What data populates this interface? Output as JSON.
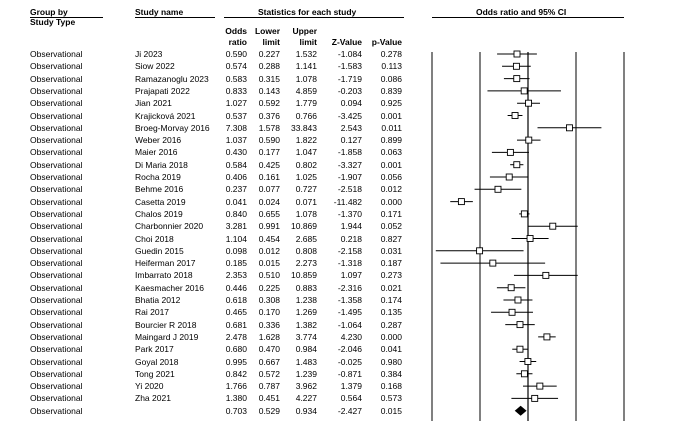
{
  "headers": {
    "group_by": "Group by",
    "study_type": "Study Type",
    "study_name": "Study name",
    "stats": "Statistics for each study",
    "plot_title": "Odds ratio and 95% CI",
    "odds_a": "Odds",
    "odds_b": "ratio",
    "lower_a": "Lower",
    "lower_b": "limit",
    "upper_a": "Upper",
    "upper_b": "limit",
    "zvalue": "Z-Value",
    "pvalue": "p-Value"
  },
  "rows": [
    {
      "type": "Observational",
      "study": "Ji 2023",
      "or": "0.590",
      "lower": "0.227",
      "upper": "1.532",
      "z": "-1.084",
      "p": "0.278"
    },
    {
      "type": "Observational",
      "study": "Siow 2022",
      "or": "0.574",
      "lower": "0.288",
      "upper": "1.141",
      "z": "-1.583",
      "p": "0.113"
    },
    {
      "type": "Observational",
      "study": "Ramazanoglu 2023",
      "or": "0.583",
      "lower": "0.315",
      "upper": "1.078",
      "z": "-1.719",
      "p": "0.086"
    },
    {
      "type": "Observational",
      "study": "Prajapati 2022",
      "or": "0.833",
      "lower": "0.143",
      "upper": "4.859",
      "z": "-0.203",
      "p": "0.839"
    },
    {
      "type": "Observational",
      "study": "Jian 2021",
      "or": "1.027",
      "lower": "0.592",
      "upper": "1.779",
      "z": "0.094",
      "p": "0.925"
    },
    {
      "type": "Observational",
      "study": "Krajicková 2021",
      "or": "0.537",
      "lower": "0.376",
      "upper": "0.766",
      "z": "-3.425",
      "p": "0.001"
    },
    {
      "type": "Observational",
      "study": "Broeg-Morvay 2016",
      "or": "7.308",
      "lower": "1.578",
      "upper": "33.843",
      "z": "2.543",
      "p": "0.011"
    },
    {
      "type": "Observational",
      "study": "Weber 2016",
      "or": "1.037",
      "lower": "0.590",
      "upper": "1.822",
      "z": "0.127",
      "p": "0.899"
    },
    {
      "type": "Observational",
      "study": "Maier 2016",
      "or": "0.430",
      "lower": "0.177",
      "upper": "1.047",
      "z": "-1.858",
      "p": "0.063"
    },
    {
      "type": "Observational",
      "study": "Di Maria 2018",
      "or": "0.584",
      "lower": "0.425",
      "upper": "0.802",
      "z": "-3.327",
      "p": "0.001"
    },
    {
      "type": "Observational",
      "study": "Rocha 2019",
      "or": "0.406",
      "lower": "0.161",
      "upper": "1.025",
      "z": "-1.907",
      "p": "0.056"
    },
    {
      "type": "Observational",
      "study": "Behme 2016",
      "or": "0.237",
      "lower": "0.077",
      "upper": "0.727",
      "z": "-2.518",
      "p": "0.012"
    },
    {
      "type": "Observational",
      "study": "Casetta 2019",
      "or": "0.041",
      "lower": "0.024",
      "upper": "0.071",
      "z": "-11.482",
      "p": "0.000"
    },
    {
      "type": "Observational",
      "study": "Chalos 2019",
      "or": "0.840",
      "lower": "0.655",
      "upper": "1.078",
      "z": "-1.370",
      "p": "0.171"
    },
    {
      "type": "Observational",
      "study": "Charbonnier 2020",
      "or": "3.281",
      "lower": "0.991",
      "upper": "10.869",
      "z": "1.944",
      "p": "0.052"
    },
    {
      "type": "Observational",
      "study": "Choi 2018",
      "or": "1.104",
      "lower": "0.454",
      "upper": "2.685",
      "z": "0.218",
      "p": "0.827"
    },
    {
      "type": "Observational",
      "study": "Guedin 2015",
      "or": "0.098",
      "lower": "0.012",
      "upper": "0.808",
      "z": "-2.158",
      "p": "0.031"
    },
    {
      "type": "Observational",
      "study": "Heiferman 2017",
      "or": "0.185",
      "lower": "0.015",
      "upper": "2.273",
      "z": "-1.318",
      "p": "0.187"
    },
    {
      "type": "Observational",
      "study": "Imbarrato 2018",
      "or": "2.353",
      "lower": "0.510",
      "upper": "10.859",
      "z": "1.097",
      "p": "0.273"
    },
    {
      "type": "Observational",
      "study": "Kaesmacher 2016",
      "or": "0.446",
      "lower": "0.225",
      "upper": "0.883",
      "z": "-2.316",
      "p": "0.021"
    },
    {
      "type": "Observational",
      "study": "Bhatia 2012",
      "or": "0.618",
      "lower": "0.308",
      "upper": "1.238",
      "z": "-1.358",
      "p": "0.174"
    },
    {
      "type": "Observational",
      "study": "Rai 2017",
      "or": "0.465",
      "lower": "0.170",
      "upper": "1.269",
      "z": "-1.495",
      "p": "0.135"
    },
    {
      "type": "Observational",
      "study": "Bourcier R 2018",
      "or": "0.681",
      "lower": "0.336",
      "upper": "1.382",
      "z": "-1.064",
      "p": "0.287"
    },
    {
      "type": "Observational",
      "study": "Maingard J 2019",
      "or": "2.478",
      "lower": "1.628",
      "upper": "3.774",
      "z": "4.230",
      "p": "0.000"
    },
    {
      "type": "Observational",
      "study": "Park 2017",
      "or": "0.680",
      "lower": "0.470",
      "upper": "0.984",
      "z": "-2.046",
      "p": "0.041"
    },
    {
      "type": "Observational",
      "study": "Goyal 2018",
      "or": "0.995",
      "lower": "0.667",
      "upper": "1.483",
      "z": "-0.025",
      "p": "0.980"
    },
    {
      "type": "Observational",
      "study": "Tong 2021",
      "or": "0.842",
      "lower": "0.572",
      "upper": "1.239",
      "z": "-0.871",
      "p": "0.384"
    },
    {
      "type": "Observational",
      "study": "Yi 2020",
      "or": "1.766",
      "lower": "0.787",
      "upper": "3.962",
      "z": "1.379",
      "p": "0.168"
    },
    {
      "type": "Observational",
      "study": "Zha 2021",
      "or": "1.380",
      "lower": "0.451",
      "upper": "4.227",
      "z": "0.564",
      "p": "0.573"
    },
    {
      "type": "Observational",
      "study": "",
      "or": "0.703",
      "lower": "0.529",
      "upper": "0.934",
      "z": "-2.427",
      "p": "0.015",
      "summary": true
    }
  ],
  "chart_data": {
    "type": "forest",
    "title": "Odds ratio and 95% CI",
    "x_scale": "log",
    "xlim": [
      0.01,
      100
    ],
    "reference_lines": [
      0.01,
      0.1,
      1,
      10,
      100
    ],
    "studies": [
      "Ji 2023",
      "Siow 2022",
      "Ramazanoglu 2023",
      "Prajapati 2022",
      "Jian 2021",
      "Krajicková 2021",
      "Broeg-Morvay 2016",
      "Weber 2016",
      "Maier 2016",
      "Di Maria 2018",
      "Rocha 2019",
      "Behme 2016",
      "Casetta 2019",
      "Chalos 2019",
      "Charbonnier 2020",
      "Choi 2018",
      "Guedin 2015",
      "Heiferman 2017",
      "Imbarrato 2018",
      "Kaesmacher 2016",
      "Bhatia 2012",
      "Rai 2017",
      "Bourcier R 2018",
      "Maingard J 2019",
      "Park 2017",
      "Goyal 2018",
      "Tong 2021",
      "Yi 2020",
      "Zha 2021"
    ],
    "odds_ratio": [
      0.59,
      0.574,
      0.583,
      0.833,
      1.027,
      0.537,
      7.308,
      1.037,
      0.43,
      0.584,
      0.406,
      0.237,
      0.041,
      0.84,
      3.281,
      1.104,
      0.098,
      0.185,
      2.353,
      0.446,
      0.618,
      0.465,
      0.681,
      2.478,
      0.68,
      0.995,
      0.842,
      1.766,
      1.38
    ],
    "lower": [
      0.227,
      0.288,
      0.315,
      0.143,
      0.592,
      0.376,
      1.578,
      0.59,
      0.177,
      0.425,
      0.161,
      0.077,
      0.024,
      0.655,
      0.991,
      0.454,
      0.012,
      0.015,
      0.51,
      0.225,
      0.308,
      0.17,
      0.336,
      1.628,
      0.47,
      0.667,
      0.572,
      0.787,
      0.451
    ],
    "upper": [
      1.532,
      1.141,
      1.078,
      4.859,
      1.779,
      0.766,
      33.843,
      1.822,
      1.047,
      0.802,
      1.025,
      0.727,
      0.071,
      1.078,
      10.869,
      2.685,
      0.808,
      2.273,
      10.859,
      0.883,
      1.238,
      1.269,
      1.382,
      3.774,
      0.984,
      1.483,
      1.239,
      3.962,
      4.227
    ],
    "summary": {
      "odds_ratio": 0.703,
      "lower": 0.529,
      "upper": 0.934
    }
  }
}
